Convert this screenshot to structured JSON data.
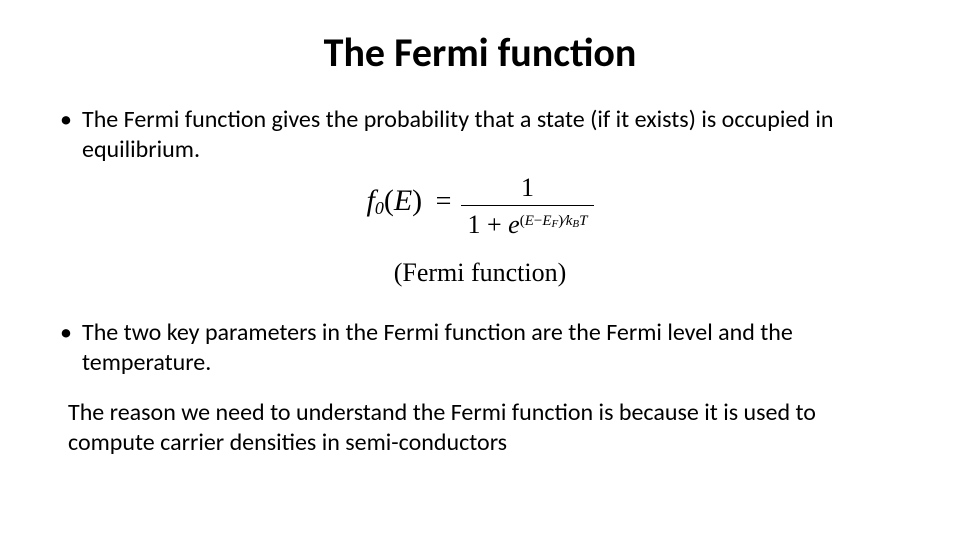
{
  "slide": {
    "title": "The Fermi function",
    "bullet1": "The Fermi function gives the probability that a state (if it exists) is occupied in equilibrium.",
    "bullet2": "The two key parameters in the Fermi function are the Fermi level and the temperature.",
    "bottom": "The  reason we need to understand the Fermi function is because it is used to compute carrier densities in semi-conductors",
    "formula": {
      "lhs_f": "f",
      "lhs_sub": "0",
      "lhs_arg_open": "(",
      "lhs_arg": "E",
      "lhs_arg_close": ")",
      "equals": "=",
      "numerator": "1",
      "den_one_plus": "1 + ",
      "den_e": "e",
      "exp_open": "(",
      "exp_E": "E",
      "exp_minus": "−",
      "exp_EF_E": "E",
      "exp_EF_Fsub": "F",
      "exp_close": ")",
      "exp_slash": "∕",
      "exp_k": "k",
      "exp_Bsub": "B",
      "exp_T": "T"
    },
    "label": "(Fermi function)"
  },
  "style": {
    "background": "#ffffff",
    "text_color": "#000000",
    "title_fontsize": 40,
    "body_fontsize": 24,
    "formula_fontsize": 28,
    "label_fontsize": 26,
    "font_family_title": "Comic Sans MS",
    "font_family_body": "Calibri",
    "font_family_math": "Times New Roman"
  }
}
